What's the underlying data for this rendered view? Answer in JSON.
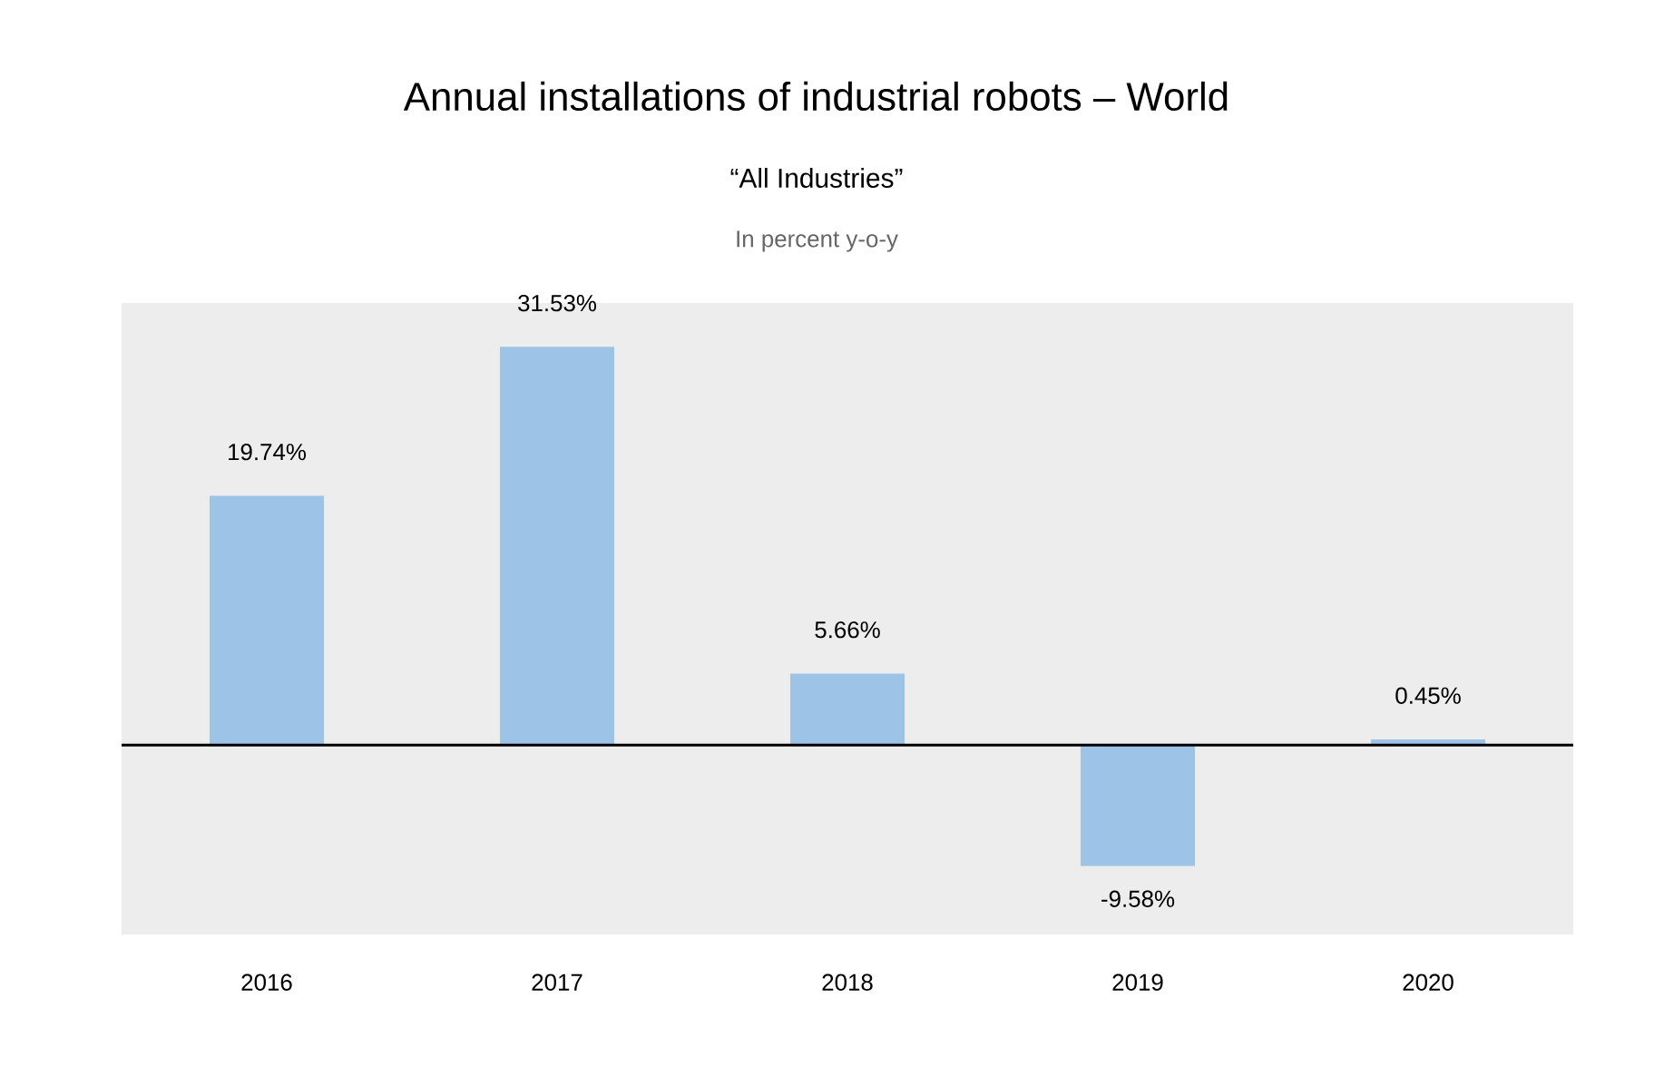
{
  "chart_data": {
    "type": "bar",
    "title": "Annual installations of industrial robots – World",
    "subtitle": "“All Industries”",
    "annotations": [
      "In percent y-o-y"
    ],
    "categories": [
      "2016",
      "2017",
      "2018",
      "2019",
      "2020"
    ],
    "values": [
      19.74,
      31.53,
      5.66,
      -9.58,
      0.45
    ],
    "value_labels": [
      "19.74%",
      "31.53%",
      "5.66%",
      "-9.58%",
      "0.45%"
    ],
    "color": "#9dc3e6",
    "ylim": [
      -15,
      35
    ]
  }
}
